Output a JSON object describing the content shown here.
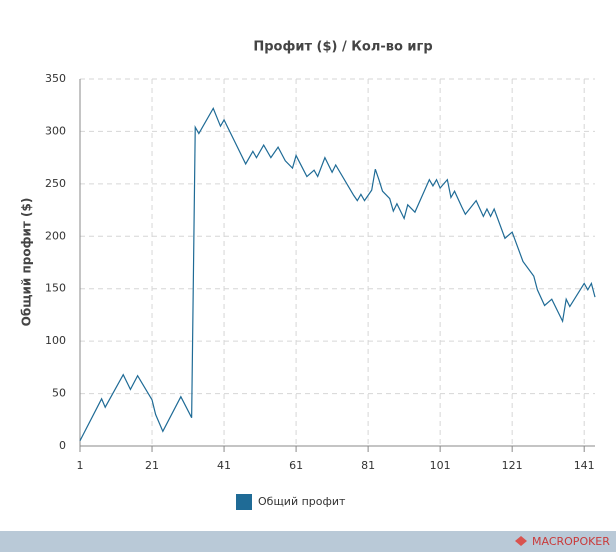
{
  "chart_data": {
    "type": "line",
    "title": "Профит ($) / Кол-во игр",
    "y_label": "Общий профит ($)",
    "x": [
      1,
      7,
      8,
      13,
      15,
      17,
      21,
      22,
      24,
      29,
      32,
      33,
      34,
      38,
      40,
      41,
      44,
      47,
      49,
      50,
      52,
      54,
      56,
      58,
      60,
      61,
      64,
      66,
      67,
      69,
      71,
      72,
      77,
      78,
      79,
      80,
      82,
      83,
      84,
      85,
      87,
      88,
      89,
      91,
      92,
      94,
      98,
      99,
      100,
      101,
      103,
      104,
      105,
      107,
      108,
      111,
      113,
      114,
      115,
      116,
      119,
      121,
      124,
      127,
      128,
      130,
      132,
      135,
      136,
      137,
      141,
      142,
      143,
      144
    ],
    "series": [
      {
        "name": "Общий профит",
        "color": "#1f6b96",
        "values": [
          5,
          45,
          37,
          68,
          54,
          67,
          44,
          30,
          14,
          47,
          27,
          304,
          298,
          322,
          305,
          311,
          290,
          269,
          281,
          275,
          287,
          275,
          285,
          272,
          265,
          277,
          257,
          263,
          257,
          275,
          261,
          268,
          239,
          234,
          240,
          234,
          244,
          264,
          254,
          243,
          236,
          224,
          231,
          217,
          230,
          223,
          254,
          248,
          254,
          246,
          254,
          237,
          243,
          228,
          221,
          234,
          219,
          226,
          219,
          226,
          198,
          204,
          176,
          162,
          149,
          134,
          140,
          119,
          140,
          133,
          155,
          149,
          155,
          142
        ]
      }
    ],
    "xlim": [
      1,
      144
    ],
    "xticks": [
      1,
      21,
      41,
      61,
      81,
      101,
      121,
      141
    ],
    "ylim": [
      0,
      350
    ],
    "yticks": [
      0,
      50,
      100,
      150,
      200,
      250,
      300,
      350
    ],
    "grid": true,
    "legend": "bottom"
  },
  "footer": {
    "brand": "MACROPOKER"
  }
}
